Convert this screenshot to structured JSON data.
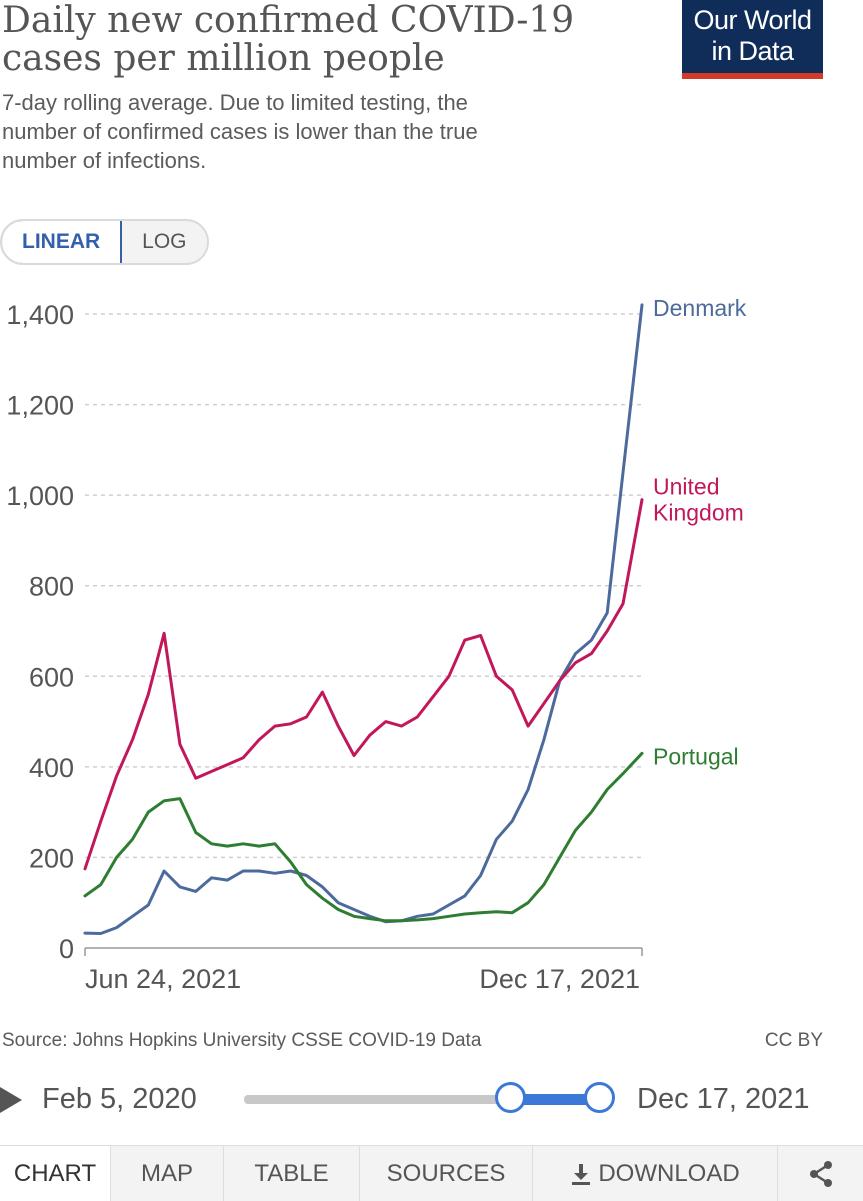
{
  "header": {
    "title_line1": "Daily new confirmed COVID-19",
    "title_line2": "cases per million people",
    "subtitle_line1": "7-day rolling average. Due to limited testing, the",
    "subtitle_line2": "number of confirmed cases is lower than the true",
    "subtitle_line3": "number of infections."
  },
  "logo": {
    "line1": "Our World",
    "line2": "in Data",
    "bg": "#102d59",
    "accent": "#d43a2a"
  },
  "scale_toggle": {
    "linear": "LINEAR",
    "log": "LOG",
    "selected": "LINEAR"
  },
  "chart_data": {
    "type": "line",
    "title": "Daily new confirmed COVID-19 cases per million people",
    "ylim": [
      0,
      1400
    ],
    "yticks": [
      0,
      200,
      400,
      600,
      800,
      1000,
      1200,
      1400
    ],
    "ytick_labels": [
      "0",
      "200",
      "400",
      "600",
      "800",
      "1,000",
      "1,200",
      "1,400"
    ],
    "xlim": [
      "2021-06-24",
      "2021-12-17"
    ],
    "xtick_labels": [
      "Jun 24, 2021",
      "Dec 17, 2021"
    ],
    "grid": true,
    "series": [
      {
        "name": "Denmark",
        "label_lines": [
          "Denmark"
        ],
        "color": "#4c6a9c",
        "x": [
          "2021-06-24",
          "2021-06-29",
          "2021-07-04",
          "2021-07-09",
          "2021-07-14",
          "2021-07-19",
          "2021-07-24",
          "2021-07-29",
          "2021-08-03",
          "2021-08-08",
          "2021-08-13",
          "2021-08-18",
          "2021-08-23",
          "2021-08-28",
          "2021-09-02",
          "2021-09-07",
          "2021-09-12",
          "2021-09-17",
          "2021-09-22",
          "2021-09-27",
          "2021-10-02",
          "2021-10-07",
          "2021-10-12",
          "2021-10-17",
          "2021-10-22",
          "2021-10-27",
          "2021-11-01",
          "2021-11-06",
          "2021-11-11",
          "2021-11-16",
          "2021-11-21",
          "2021-11-26",
          "2021-12-01",
          "2021-12-06",
          "2021-12-11",
          "2021-12-17"
        ],
        "y": [
          33,
          32,
          45,
          70,
          95,
          170,
          135,
          125,
          155,
          150,
          170,
          170,
          165,
          170,
          160,
          135,
          100,
          85,
          70,
          58,
          60,
          70,
          75,
          95,
          115,
          160,
          240,
          280,
          350,
          460,
          590,
          650,
          680,
          740,
          1050,
          1420
        ]
      },
      {
        "name": "United Kingdom",
        "label_lines": [
          "United",
          "Kingdom"
        ],
        "color": "#c2185b",
        "x": [
          "2021-06-24",
          "2021-06-29",
          "2021-07-04",
          "2021-07-09",
          "2021-07-14",
          "2021-07-19",
          "2021-07-24",
          "2021-07-29",
          "2021-08-03",
          "2021-08-08",
          "2021-08-13",
          "2021-08-18",
          "2021-08-23",
          "2021-08-28",
          "2021-09-02",
          "2021-09-07",
          "2021-09-12",
          "2021-09-17",
          "2021-09-22",
          "2021-09-27",
          "2021-10-02",
          "2021-10-07",
          "2021-10-12",
          "2021-10-17",
          "2021-10-22",
          "2021-10-27",
          "2021-11-01",
          "2021-11-06",
          "2021-11-11",
          "2021-11-16",
          "2021-11-21",
          "2021-11-26",
          "2021-12-01",
          "2021-12-06",
          "2021-12-11",
          "2021-12-17"
        ],
        "y": [
          175,
          280,
          380,
          460,
          560,
          695,
          450,
          375,
          390,
          405,
          420,
          460,
          490,
          495,
          510,
          565,
          490,
          425,
          470,
          500,
          490,
          510,
          555,
          600,
          680,
          690,
          600,
          570,
          490,
          540,
          590,
          630,
          650,
          700,
          760,
          990
        ]
      },
      {
        "name": "Portugal",
        "label_lines": [
          "Portugal"
        ],
        "color": "#2e7d32",
        "x": [
          "2021-06-24",
          "2021-06-29",
          "2021-07-04",
          "2021-07-09",
          "2021-07-14",
          "2021-07-19",
          "2021-07-24",
          "2021-07-29",
          "2021-08-03",
          "2021-08-08",
          "2021-08-13",
          "2021-08-18",
          "2021-08-23",
          "2021-08-28",
          "2021-09-02",
          "2021-09-07",
          "2021-09-12",
          "2021-09-17",
          "2021-09-22",
          "2021-09-27",
          "2021-10-02",
          "2021-10-07",
          "2021-10-12",
          "2021-10-17",
          "2021-10-22",
          "2021-10-27",
          "2021-11-01",
          "2021-11-06",
          "2021-11-11",
          "2021-11-16",
          "2021-11-21",
          "2021-11-26",
          "2021-12-01",
          "2021-12-06",
          "2021-12-11",
          "2021-12-17"
        ],
        "y": [
          115,
          140,
          200,
          240,
          300,
          325,
          330,
          255,
          230,
          225,
          230,
          225,
          230,
          190,
          140,
          110,
          85,
          70,
          65,
          60,
          60,
          62,
          65,
          70,
          75,
          78,
          80,
          78,
          100,
          140,
          200,
          260,
          300,
          350,
          385,
          430
        ]
      }
    ]
  },
  "footer": {
    "source": "Source: Johns Hopkins University CSSE COVID-19 Data",
    "license": "CC BY"
  },
  "timeline": {
    "start_label": "Feb 5, 2020",
    "end_label": "Dec 17, 2021",
    "selection_start_fraction": 0.75,
    "selection_end_fraction": 1.0,
    "accent": "#3b78d8"
  },
  "tabs": [
    {
      "label": "CHART",
      "name": "tab-chart",
      "active": true
    },
    {
      "label": "MAP",
      "name": "tab-map",
      "active": false
    },
    {
      "label": "TABLE",
      "name": "tab-table",
      "active": false
    },
    {
      "label": "SOURCES",
      "name": "tab-sources",
      "active": false
    },
    {
      "label": "DOWNLOAD",
      "name": "tab-download",
      "icon": "download-icon",
      "active": false
    },
    {
      "label": "",
      "name": "tab-share",
      "icon": "share-icon",
      "active": false
    }
  ]
}
